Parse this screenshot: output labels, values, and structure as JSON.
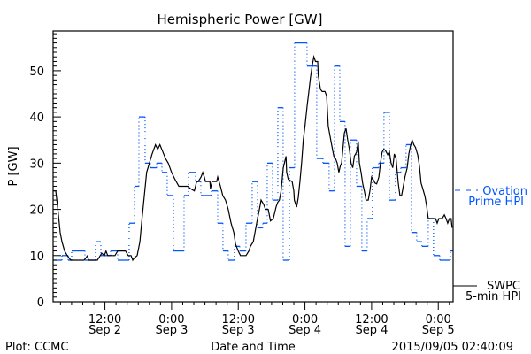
{
  "chart_data": {
    "type": "line",
    "title": "Hemispheric Power [GW]",
    "xlabel": "Date and Time",
    "ylabel": "P [GW]",
    "x_units": "hours since 2015-09-02 00:00",
    "xlim": [
      2.67,
      74.67
    ],
    "ylim": [
      0,
      58.6
    ],
    "y_ticks": [
      0,
      10,
      20,
      30,
      40,
      50
    ],
    "x_ticks": [
      {
        "x": 12,
        "time": "12:00",
        "date": "Sep 2"
      },
      {
        "x": 24,
        "time": "0:00",
        "date": "Sep 3"
      },
      {
        "x": 36,
        "time": "12:00",
        "date": "Sep 3"
      },
      {
        "x": 48,
        "time": "0:00",
        "date": "Sep 4"
      },
      {
        "x": 60,
        "time": "12:00",
        "date": "Sep 4"
      },
      {
        "x": 72,
        "time": "0:00",
        "date": "Sep 5"
      }
    ],
    "legend": {
      "placement": "right",
      "entries": [
        {
          "line1": "Ovation",
          "line2": "Prime HPI",
          "color": "#0055ff",
          "style": "dashed"
        },
        {
          "line1": "SWPC",
          "line2": "5-min HPI",
          "color": "#000000",
          "style": "solid"
        }
      ]
    },
    "series": [
      {
        "name": "Ovation Prime HPI",
        "color": "#0055ff",
        "kind": "step",
        "end_x": 74.67,
        "points": [
          [
            2.67,
            9
          ],
          [
            4.26,
            10
          ],
          [
            5.38,
            9
          ],
          [
            6.01,
            11
          ],
          [
            8.4,
            9
          ],
          [
            10.31,
            13
          ],
          [
            11.27,
            10
          ],
          [
            13.02,
            11
          ],
          [
            14.29,
            9
          ],
          [
            16.36,
            17
          ],
          [
            17.32,
            25
          ],
          [
            18.12,
            40
          ],
          [
            19.23,
            30
          ],
          [
            20.19,
            29
          ],
          [
            21.3,
            30
          ],
          [
            22.26,
            28
          ],
          [
            23.21,
            23
          ],
          [
            24.33,
            11
          ],
          [
            26.24,
            23
          ],
          [
            27.03,
            28
          ],
          [
            28.31,
            26
          ],
          [
            29.26,
            23
          ],
          [
            31.17,
            24
          ],
          [
            32.29,
            17
          ],
          [
            33.24,
            11
          ],
          [
            34.2,
            9
          ],
          [
            35.31,
            12
          ],
          [
            36.27,
            11
          ],
          [
            37.38,
            17
          ],
          [
            38.5,
            26
          ],
          [
            39.45,
            16
          ],
          [
            40.41,
            17
          ],
          [
            41.21,
            30
          ],
          [
            42.16,
            22
          ],
          [
            43.12,
            42
          ],
          [
            44.07,
            9
          ],
          [
            45.19,
            29
          ],
          [
            46.14,
            56
          ],
          [
            48.37,
            51
          ],
          [
            50.12,
            31
          ],
          [
            51.24,
            30
          ],
          [
            52.35,
            24
          ],
          [
            53.31,
            51
          ],
          [
            54.27,
            39
          ],
          [
            55.22,
            12
          ],
          [
            56.18,
            35
          ],
          [
            57.29,
            25
          ],
          [
            58.24,
            11
          ],
          [
            59.2,
            18
          ],
          [
            60.15,
            29
          ],
          [
            61.27,
            30
          ],
          [
            62.22,
            41
          ],
          [
            63.18,
            22
          ],
          [
            64.29,
            28
          ],
          [
            65.25,
            29
          ],
          [
            66.2,
            34
          ],
          [
            67.16,
            15
          ],
          [
            68.12,
            13
          ],
          [
            69.07,
            12
          ],
          [
            70.19,
            18
          ],
          [
            71.14,
            10
          ],
          [
            72.26,
            9
          ],
          [
            74.17,
            11
          ]
        ]
      },
      {
        "name": "SWPC 5-min HPI",
        "color": "#000000",
        "kind": "line",
        "points": [
          [
            2.67,
            24
          ],
          [
            3.15,
            24
          ],
          [
            3.47,
            20.7
          ],
          [
            3.94,
            15
          ],
          [
            4.26,
            13
          ],
          [
            4.74,
            11
          ],
          [
            5.22,
            10
          ],
          [
            5.85,
            9
          ],
          [
            8.24,
            9
          ],
          [
            8.88,
            10
          ],
          [
            9.04,
            9
          ],
          [
            10.63,
            9
          ],
          [
            11.43,
            10.5
          ],
          [
            11.9,
            10
          ],
          [
            12.2,
            11
          ],
          [
            12.5,
            10
          ],
          [
            13.8,
            10
          ],
          [
            14.3,
            11
          ],
          [
            15.7,
            11
          ],
          [
            16.2,
            10
          ],
          [
            16.7,
            10
          ],
          [
            17.0,
            9
          ],
          [
            17.3,
            9.5
          ],
          [
            17.8,
            10
          ],
          [
            18.3,
            13
          ],
          [
            18.6,
            17
          ],
          [
            19.1,
            23
          ],
          [
            19.5,
            28
          ],
          [
            20.0,
            30
          ],
          [
            20.5,
            32
          ],
          [
            21.1,
            34
          ],
          [
            21.5,
            33
          ],
          [
            21.9,
            34
          ],
          [
            22.4,
            32.5
          ],
          [
            22.9,
            31
          ],
          [
            23.4,
            30
          ],
          [
            24.0,
            28
          ],
          [
            24.6,
            26.5
          ],
          [
            25.3,
            25
          ],
          [
            25.8,
            25
          ],
          [
            26.9,
            25
          ],
          [
            27.4,
            24.5
          ],
          [
            28.1,
            24
          ],
          [
            28.5,
            26
          ],
          [
            28.8,
            26
          ],
          [
            29.3,
            27
          ],
          [
            29.6,
            28
          ],
          [
            29.9,
            27
          ],
          [
            30.1,
            26
          ],
          [
            30.9,
            26
          ],
          [
            31.0,
            24.5
          ],
          [
            31.3,
            26
          ],
          [
            32.1,
            26
          ],
          [
            32.3,
            27
          ],
          [
            32.8,
            25
          ],
          [
            33.2,
            23
          ],
          [
            33.7,
            22
          ],
          [
            34.2,
            20
          ],
          [
            34.7,
            17
          ],
          [
            35.2,
            15
          ],
          [
            35.5,
            12.5
          ],
          [
            36.0,
            11
          ],
          [
            36.4,
            10
          ],
          [
            36.9,
            10
          ],
          [
            37.4,
            10
          ],
          [
            37.9,
            11
          ],
          [
            38.2,
            12
          ],
          [
            38.7,
            13
          ],
          [
            39.0,
            15
          ],
          [
            39.3,
            17
          ],
          [
            39.8,
            20
          ],
          [
            40.1,
            22
          ],
          [
            40.6,
            21
          ],
          [
            40.9,
            20
          ],
          [
            41.4,
            20
          ],
          [
            41.8,
            17.5
          ],
          [
            42.3,
            18
          ],
          [
            42.8,
            20.5
          ],
          [
            43.1,
            21.5
          ],
          [
            43.4,
            22
          ],
          [
            43.7,
            24
          ],
          [
            44.1,
            29
          ],
          [
            44.6,
            31.5
          ],
          [
            44.7,
            28
          ],
          [
            45.0,
            26.5
          ],
          [
            45.7,
            26
          ],
          [
            46.0,
            24
          ],
          [
            46.1,
            22
          ],
          [
            46.5,
            20.5
          ],
          [
            46.8,
            22.5
          ],
          [
            47.1,
            26
          ],
          [
            47.4,
            30
          ],
          [
            47.7,
            35
          ],
          [
            48.0,
            38
          ],
          [
            48.4,
            42.5
          ],
          [
            48.7,
            45.5
          ],
          [
            49.0,
            48.5
          ],
          [
            49.3,
            51
          ],
          [
            49.6,
            53
          ],
          [
            49.9,
            52
          ],
          [
            50.3,
            52
          ],
          [
            50.4,
            49
          ],
          [
            50.8,
            46
          ],
          [
            51.1,
            45.5
          ],
          [
            51.6,
            45.5
          ],
          [
            51.9,
            44.5
          ],
          [
            52.2,
            38
          ],
          [
            52.5,
            36
          ],
          [
            52.8,
            34
          ],
          [
            53.2,
            31.5
          ],
          [
            53.5,
            31
          ],
          [
            53.8,
            30
          ],
          [
            54.1,
            28
          ],
          [
            54.4,
            29.5
          ],
          [
            54.6,
            30
          ],
          [
            55.1,
            36.5
          ],
          [
            55.4,
            37.5
          ],
          [
            55.7,
            35
          ],
          [
            56.0,
            33
          ],
          [
            56.3,
            30
          ],
          [
            56.6,
            29
          ],
          [
            56.9,
            31.5
          ],
          [
            57.3,
            32.4
          ],
          [
            57.6,
            34.7
          ],
          [
            57.8,
            30
          ],
          [
            58.1,
            28
          ],
          [
            58.4,
            25.5
          ],
          [
            58.7,
            24
          ],
          [
            59.0,
            22
          ],
          [
            59.4,
            22
          ],
          [
            59.7,
            24
          ],
          [
            60.0,
            27
          ],
          [
            60.3,
            26.4
          ],
          [
            60.6,
            25.7
          ],
          [
            60.9,
            25.5
          ],
          [
            61.3,
            27
          ],
          [
            61.6,
            30
          ],
          [
            61.9,
            32.4
          ],
          [
            62.2,
            33
          ],
          [
            62.5,
            32.7
          ],
          [
            62.9,
            31.8
          ],
          [
            63.2,
            32.5
          ],
          [
            63.5,
            30
          ],
          [
            63.8,
            29
          ],
          [
            64.1,
            32
          ],
          [
            64.4,
            31
          ],
          [
            64.8,
            25.7
          ],
          [
            65.1,
            23
          ],
          [
            65.4,
            23
          ],
          [
            65.7,
            25
          ],
          [
            66.0,
            27
          ],
          [
            66.4,
            29
          ],
          [
            66.7,
            32
          ],
          [
            67.0,
            33.7
          ],
          [
            67.3,
            35
          ],
          [
            67.6,
            34
          ],
          [
            67.9,
            33.4
          ],
          [
            68.3,
            31.8
          ],
          [
            68.6,
            29.5
          ],
          [
            68.9,
            25.7
          ],
          [
            69.2,
            24.5
          ],
          [
            69.6,
            22.8
          ],
          [
            69.9,
            20.7
          ],
          [
            70.2,
            18
          ],
          [
            70.5,
            18
          ],
          [
            71.1,
            18
          ],
          [
            71.5,
            18
          ],
          [
            71.8,
            17
          ],
          [
            72.1,
            18
          ],
          [
            72.7,
            18
          ],
          [
            73.1,
            18.8
          ],
          [
            73.4,
            18
          ],
          [
            73.7,
            17
          ],
          [
            74.0,
            18
          ],
          [
            74.3,
            18
          ],
          [
            74.5,
            16
          ]
        ]
      }
    ]
  },
  "footer": {
    "left": "Plot: CCMC",
    "right": "2015/09/05 02:40:09"
  }
}
